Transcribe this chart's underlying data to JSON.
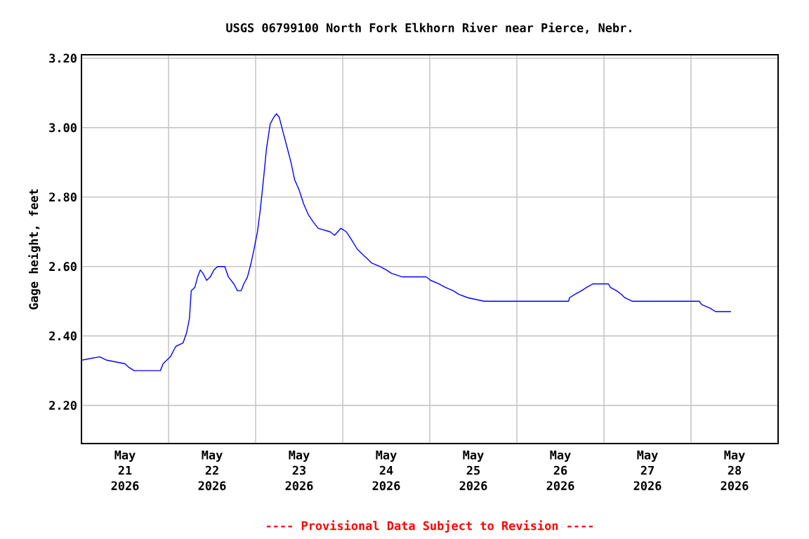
{
  "chart_data": {
    "type": "line",
    "title": "USGS 06799100 North Fork Elkhorn River near Pierce, Nebr.",
    "ylabel": "Gage height, feet",
    "annotations": [
      "---- Provisional Data Subject to Revision ----"
    ],
    "x": [
      "2026-05-21T00:00",
      "2026-05-21T05:00",
      "2026-05-21T07:00",
      "2026-05-21T12:00",
      "2026-05-21T13:00",
      "2026-05-21T14:30",
      "2026-05-21T21:45",
      "2026-05-21T22:30",
      "2026-05-22T00:30",
      "2026-05-22T02:00",
      "2026-05-22T04:00",
      "2026-05-22T05:00",
      "2026-05-22T05:45",
      "2026-05-22T06:15",
      "2026-05-22T07:15",
      "2026-05-22T08:00",
      "2026-05-22T08:45",
      "2026-05-22T09:30",
      "2026-05-22T10:30",
      "2026-05-22T11:30",
      "2026-05-22T12:30",
      "2026-05-22T13:30",
      "2026-05-22T15:30",
      "2026-05-22T16:30",
      "2026-05-22T18:00",
      "2026-05-22T19:00",
      "2026-05-22T20:00",
      "2026-05-22T20:45",
      "2026-05-22T21:45",
      "2026-05-22T22:45",
      "2026-05-22T23:45",
      "2026-05-23T00:30",
      "2026-05-23T01:15",
      "2026-05-23T02:15",
      "2026-05-23T03:00",
      "2026-05-23T04:00",
      "2026-05-23T05:00",
      "2026-05-23T05:45",
      "2026-05-23T06:30",
      "2026-05-23T07:30",
      "2026-05-23T08:45",
      "2026-05-23T09:45",
      "2026-05-23T10:45",
      "2026-05-23T12:00",
      "2026-05-23T13:15",
      "2026-05-23T14:30",
      "2026-05-23T15:45",
      "2026-05-23T17:15",
      "2026-05-23T20:30",
      "2026-05-23T21:45",
      "2026-05-23T23:30",
      "2026-05-24T01:00",
      "2026-05-24T02:15",
      "2026-05-24T04:00",
      "2026-05-24T06:00",
      "2026-05-24T08:00",
      "2026-05-24T10:15",
      "2026-05-24T12:00",
      "2026-05-24T13:30",
      "2026-05-24T16:30",
      "2026-05-24T23:00",
      "2026-05-25T00:15",
      "2026-05-25T02:30",
      "2026-05-25T04:15",
      "2026-05-25T06:30",
      "2026-05-25T08:00",
      "2026-05-25T10:30",
      "2026-05-25T15:00",
      "2026-05-26T14:15",
      "2026-05-26T14:30",
      "2026-05-26T16:00",
      "2026-05-26T17:45",
      "2026-05-26T19:15",
      "2026-05-26T21:00",
      "2026-05-27T01:15",
      "2026-05-27T01:45",
      "2026-05-27T03:30",
      "2026-05-27T04:45",
      "2026-05-27T05:45",
      "2026-05-27T07:45",
      "2026-05-28T02:15",
      "2026-05-28T03:00",
      "2026-05-28T05:15",
      "2026-05-28T06:45",
      "2026-05-28T11:00"
    ],
    "series": [
      {
        "color": "#0000ff",
        "values": [
          2.33,
          2.34,
          2.33,
          2.32,
          2.31,
          2.3,
          2.3,
          2.32,
          2.34,
          2.37,
          2.38,
          2.41,
          2.45,
          2.53,
          2.54,
          2.57,
          2.59,
          2.58,
          2.56,
          2.57,
          2.59,
          2.6,
          2.6,
          2.57,
          2.55,
          2.53,
          2.53,
          2.55,
          2.57,
          2.61,
          2.66,
          2.7,
          2.76,
          2.86,
          2.94,
          3.01,
          3.03,
          3.04,
          3.03,
          2.99,
          2.94,
          2.9,
          2.85,
          2.82,
          2.78,
          2.75,
          2.73,
          2.71,
          2.7,
          2.69,
          2.71,
          2.7,
          2.68,
          2.65,
          2.63,
          2.61,
          2.6,
          2.59,
          2.58,
          2.57,
          2.57,
          2.56,
          2.55,
          2.54,
          2.53,
          2.52,
          2.51,
          2.5,
          2.5,
          2.51,
          2.52,
          2.53,
          2.54,
          2.55,
          2.55,
          2.54,
          2.53,
          2.52,
          2.51,
          2.5,
          2.5,
          2.49,
          2.48,
          2.47,
          2.47
        ]
      }
    ],
    "xlim": [
      "2026-05-21T00:00",
      "2026-05-29T00:00"
    ],
    "xticks": [
      {
        "value": "2026-05-22T00:00",
        "label": null
      },
      {
        "value": "2026-05-23T00:00",
        "label": null
      },
      {
        "value": "2026-05-24T00:00",
        "label": null
      },
      {
        "value": "2026-05-25T00:00",
        "label": null
      },
      {
        "value": "2026-05-26T00:00",
        "label": null
      },
      {
        "value": "2026-05-27T00:00",
        "label": null
      },
      {
        "value": "2026-05-28T00:00",
        "label": null
      },
      {
        "value": "2026-05-21T12:00",
        "label": "May 21 2026"
      },
      {
        "value": "2026-05-22T12:00",
        "label": "May 22 2026"
      },
      {
        "value": "2026-05-23T12:00",
        "label": "May 23 2026"
      },
      {
        "value": "2026-05-24T12:00",
        "label": "May 24 2026"
      },
      {
        "value": "2026-05-25T12:00",
        "label": "May 25 2026"
      },
      {
        "value": "2026-05-26T12:00",
        "label": "May 26 2026"
      },
      {
        "value": "2026-05-27T12:00",
        "label": "May 27 2026"
      },
      {
        "value": "2026-05-28T12:00",
        "label": "May 28 2026"
      }
    ],
    "ylim": [
      2.09,
      3.21
    ],
    "yticks": [
      {
        "value": 2.2,
        "label": "2.20"
      },
      {
        "value": 2.4,
        "label": "2.40"
      },
      {
        "value": 2.6,
        "label": "2.60"
      },
      {
        "value": 2.8,
        "label": "2.80"
      },
      {
        "value": 3.0,
        "label": "3.00"
      },
      {
        "value": 3.2,
        "label": "3.20"
      }
    ],
    "grid": true,
    "marker": "none",
    "line_style": "solid"
  }
}
